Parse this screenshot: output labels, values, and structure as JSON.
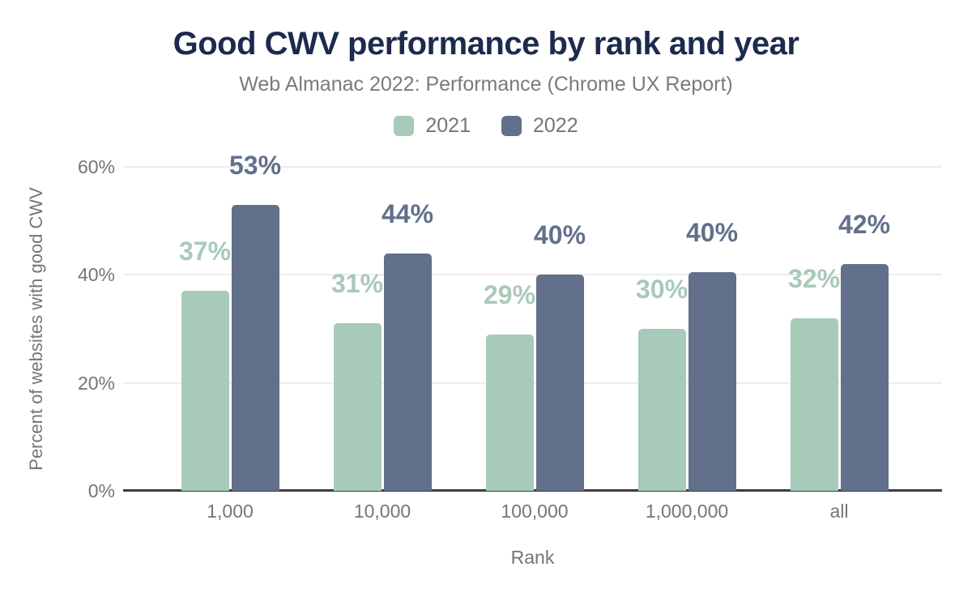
{
  "chart_data": {
    "type": "bar",
    "title": "Good CWV performance by rank and year",
    "subtitle": "Web Almanac 2022: Performance (Chrome UX Report)",
    "categories": [
      "1,000",
      "10,000",
      "100,000",
      "1,000,000",
      "all"
    ],
    "series": [
      {
        "name": "2021",
        "color": "#a8cab9",
        "values": [
          37,
          31,
          29,
          30,
          32
        ],
        "labels": [
          "37%",
          "31%",
          "29%",
          "30%",
          "32%"
        ]
      },
      {
        "name": "2022",
        "color": "#62708b",
        "values": [
          53,
          44,
          40,
          40.5,
          42
        ],
        "labels": [
          "53%",
          "44%",
          "40%",
          "40%",
          "42%"
        ]
      }
    ],
    "xlabel": "Rank",
    "ylabel": "Percent of websites with good CWV",
    "ylim": [
      0,
      60
    ],
    "yticks": [
      {
        "value": 0,
        "label": "0%"
      },
      {
        "value": 20,
        "label": "20%"
      },
      {
        "value": 40,
        "label": "40%"
      },
      {
        "value": 60,
        "label": "60%"
      }
    ],
    "grid": true,
    "legend_position": "top"
  },
  "colors": {
    "title": "#1c2b4d",
    "subtitle": "#7b7b7b",
    "axis_text": "#757575",
    "gridline": "#ededed",
    "axis_line": "#3d3d3d",
    "series_2021": "#a8cab9",
    "series_2022": "#62708b",
    "background": "#ffffff"
  }
}
